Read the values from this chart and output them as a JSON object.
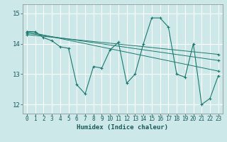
{
  "xlabel": "Humidex (Indice chaleur)",
  "bg_color": "#cde8e8",
  "grid_color": "#ffffff",
  "line_color": "#1a7a6e",
  "xlim": [
    -0.5,
    23.5
  ],
  "ylim": [
    11.7,
    15.3
  ],
  "yticks": [
    12,
    13,
    14,
    15
  ],
  "xticks": [
    0,
    1,
    2,
    3,
    4,
    5,
    6,
    7,
    8,
    9,
    10,
    11,
    12,
    13,
    14,
    15,
    16,
    17,
    18,
    19,
    20,
    21,
    22,
    23
  ],
  "lines": [
    {
      "x": [
        0,
        1,
        2,
        3,
        4,
        5,
        6,
        7,
        8,
        9,
        10,
        11,
        12,
        13,
        14,
        15,
        16,
        17,
        18,
        19,
        20,
        21,
        22,
        23
      ],
      "y": [
        14.4,
        14.4,
        14.2,
        14.1,
        13.9,
        13.85,
        12.65,
        12.35,
        13.25,
        13.2,
        13.8,
        14.05,
        12.7,
        13.0,
        14.0,
        14.85,
        14.85,
        14.55,
        13.0,
        12.9,
        14.0,
        12.0,
        12.2,
        12.95
      ]
    },
    {
      "x": [
        0,
        23
      ],
      "y": [
        14.4,
        13.1
      ]
    },
    {
      "x": [
        0,
        23
      ],
      "y": [
        14.35,
        13.45
      ]
    },
    {
      "x": [
        0,
        23
      ],
      "y": [
        14.3,
        13.65
      ]
    }
  ]
}
